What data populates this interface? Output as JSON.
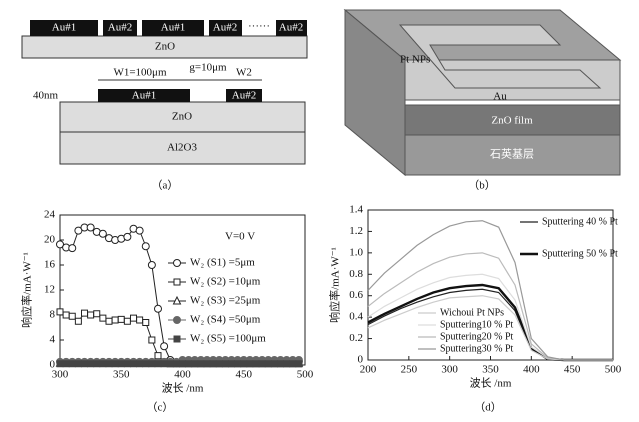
{
  "panel_a": {
    "top_labels": [
      "Au#1",
      "Au#2",
      "Au#1",
      "Au#2",
      "······",
      "Au#2"
    ],
    "top_substrate": "ZnO",
    "w1": "W1=100μm",
    "gap": "g=10μm",
    "w2": "W2",
    "thickness": "40nm",
    "electrode1": "Au#1",
    "electrode2": "Au#2",
    "layer": "ZnO",
    "substrate": "Al2O3",
    "caption": "（a）"
  },
  "panel_b": {
    "np_label": "Pt NPs",
    "electrode": "Au",
    "film": "ZnO film",
    "base": "石英基层",
    "caption": "（b）"
  },
  "captions": {
    "c": "（c）",
    "d": "（d）"
  },
  "chart_data": [
    {
      "type": "line",
      "annotation": "V=0 V",
      "xlabel": "波长 /nm",
      "ylabel": "响应率/mA·W⁻¹",
      "xlim": [
        300,
        500
      ],
      "xticks": [
        300,
        350,
        400,
        450,
        500
      ],
      "ylim": [
        0,
        24
      ],
      "yticks": [
        0,
        4,
        8,
        12,
        16,
        20,
        24
      ],
      "x": [
        300,
        305,
        310,
        315,
        320,
        325,
        330,
        335,
        340,
        345,
        350,
        355,
        360,
        365,
        370,
        375,
        380,
        385,
        390,
        395,
        400,
        405,
        410,
        415,
        420,
        425,
        430,
        435,
        440,
        445,
        450,
        455,
        460,
        465,
        470,
        475,
        480,
        485,
        490,
        495
      ],
      "series": [
        {
          "name": "W₂ (S1) =5μm",
          "color": "#222",
          "marker": "circle",
          "filled": false,
          "values": [
            19.3,
            18.8,
            18.7,
            21.5,
            22,
            22,
            21.3,
            21,
            20.3,
            20,
            20.2,
            20.5,
            21.8,
            21.5,
            19,
            16,
            9,
            3,
            0.8,
            0.3,
            0.6,
            0.6,
            0.6,
            0.6,
            0.6,
            0.6,
            0.6,
            0.6,
            0.6,
            0.6,
            0.6,
            0.6,
            0.6,
            0.6,
            0.6,
            0.6,
            0.6,
            0.6,
            0.6,
            0.6
          ]
        },
        {
          "name": "W₂ (S2) =10μm",
          "color": "#222",
          "marker": "square",
          "filled": false,
          "values": [
            8.5,
            8,
            7.8,
            7,
            8.3,
            8,
            8.2,
            7.5,
            7,
            7.2,
            7.3,
            7,
            7.5,
            7.2,
            6.8,
            4,
            1.5,
            0.5,
            0.2,
            0.2,
            0.2,
            0.2,
            0.2,
            0.2,
            0.2,
            0.2,
            0.2,
            0.2,
            0.2,
            0.2,
            0.2,
            0.2,
            0.2,
            0.2,
            0.2,
            0.2,
            0.2,
            0.2,
            0.2,
            0.2
          ]
        },
        {
          "name": "W₂ (S3) =25μm",
          "color": "#222",
          "marker": "triangle",
          "filled": false,
          "values": [
            0.3,
            0.3,
            0.3,
            0.3,
            0.3,
            0.3,
            0.3,
            0.3,
            0.3,
            0.3,
            0.3,
            0.3,
            0.3,
            0.3,
            0.3,
            0.3,
            0.3,
            0.3,
            0.3,
            0.3,
            0.3,
            0.3,
            0.3,
            0.3,
            0.3,
            0.3,
            0.3,
            0.3,
            0.3,
            0.3,
            0.3,
            0.3,
            0.3,
            0.3,
            0.3,
            0.3,
            0.3,
            0.3,
            0.3,
            0.3
          ]
        },
        {
          "name": "W₂ (S4) =50μm",
          "color": "#666",
          "marker": "circle",
          "filled": true,
          "values": [
            0.5,
            0.5,
            0.5,
            0.5,
            0.5,
            0.5,
            0.5,
            0.5,
            0.5,
            0.5,
            0.5,
            0.5,
            0.5,
            0.5,
            0.5,
            0.5,
            0.5,
            0.5,
            0.5,
            0.5,
            0.8,
            0.8,
            0.8,
            0.8,
            0.8,
            0.8,
            0.8,
            0.8,
            0.8,
            0.8,
            0.8,
            0.8,
            0.8,
            0.8,
            0.8,
            0.8,
            0.8,
            0.8,
            0.8,
            0.8
          ]
        },
        {
          "name": "W₂ (S5) =100μm",
          "color": "#444",
          "marker": "square",
          "filled": true,
          "values": [
            0.2,
            0.2,
            0.2,
            0.2,
            0.2,
            0.2,
            0.2,
            0.2,
            0.2,
            0.2,
            0.2,
            0.2,
            0.2,
            0.2,
            0.2,
            0.2,
            0.2,
            0.2,
            0.2,
            0.2,
            0.2,
            0.2,
            0.2,
            0.2,
            0.2,
            0.2,
            0.2,
            0.2,
            0.2,
            0.2,
            0.2,
            0.2,
            0.2,
            0.2,
            0.2,
            0.2,
            0.2,
            0.2,
            0.2,
            0.2
          ]
        }
      ]
    },
    {
      "type": "line",
      "xlabel": "波长 /nm",
      "ylabel": "响应率/mA·W⁻¹",
      "xlim": [
        200,
        500
      ],
      "xticks": [
        200,
        250,
        300,
        350,
        400,
        450,
        500
      ],
      "ylim": [
        0,
        1.4
      ],
      "yticks": [
        0,
        0.2,
        0.4,
        0.6,
        0.8,
        {
          "value": 1,
          "label": "1.0"
        },
        1.2,
        1.4
      ],
      "x": [
        200,
        220,
        240,
        260,
        280,
        300,
        320,
        340,
        360,
        380,
        400,
        420,
        440,
        460,
        480,
        500
      ],
      "series": [
        {
          "name": "Sputtering 40 % Pt",
          "color": "#222",
          "width": 1.2,
          "values": [
            0.33,
            0.41,
            0.48,
            0.54,
            0.59,
            0.63,
            0.65,
            0.66,
            0.63,
            0.46,
            0.1,
            0.01,
            0,
            0,
            0,
            0
          ]
        },
        {
          "name": "Sputtering 50 % Pt",
          "color": "#111",
          "width": 2.4,
          "values": [
            0.35,
            0.43,
            0.5,
            0.57,
            0.63,
            0.67,
            0.69,
            0.7,
            0.67,
            0.49,
            0.11,
            0.01,
            0,
            0,
            0,
            0
          ]
        },
        {
          "name": "Wichoui Pt NPs",
          "color": "#ccc",
          "width": 1.2,
          "values": [
            0.3,
            0.37,
            0.43,
            0.49,
            0.54,
            0.58,
            0.59,
            0.6,
            0.57,
            0.42,
            0.09,
            0.01,
            0,
            0,
            0,
            0
          ]
        },
        {
          "name": "Sputtering10 % Pt",
          "color": "#ddd",
          "width": 1.2,
          "values": [
            0.4,
            0.5,
            0.58,
            0.66,
            0.72,
            0.77,
            0.79,
            0.8,
            0.76,
            0.56,
            0.12,
            0.02,
            0,
            0,
            0,
            0
          ]
        },
        {
          "name": "Sputtering20 % Pt",
          "color": "#bbb",
          "width": 1.2,
          "values": [
            0.5,
            0.62,
            0.72,
            0.82,
            0.9,
            0.96,
            0.99,
            1.0,
            0.95,
            0.7,
            0.15,
            0.02,
            0,
            0,
            0,
            0
          ]
        },
        {
          "name": "Sputtering30 % Pt",
          "color": "#999",
          "width": 1.2,
          "values": [
            0.65,
            0.81,
            0.94,
            1.07,
            1.17,
            1.25,
            1.29,
            1.3,
            1.24,
            0.91,
            0.2,
            0.03,
            0,
            0,
            0,
            0
          ]
        }
      ]
    }
  ]
}
